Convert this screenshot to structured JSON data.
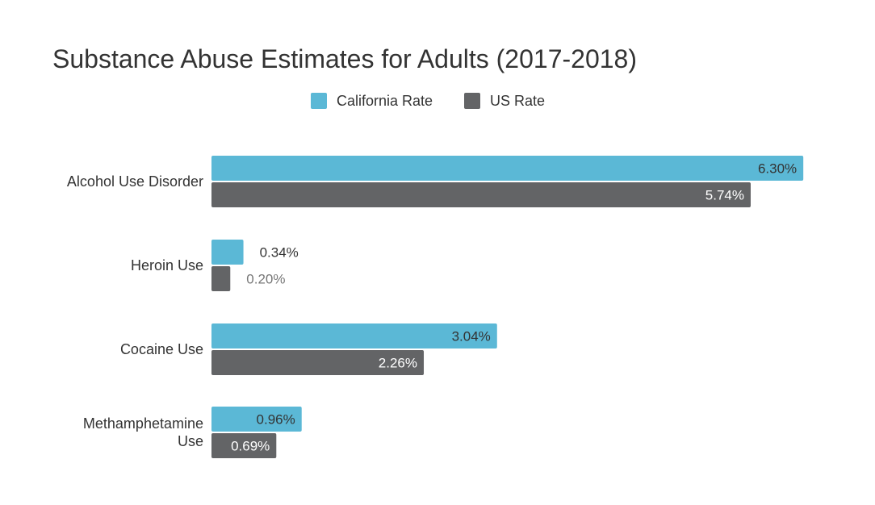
{
  "chart_data": {
    "type": "bar",
    "orientation": "horizontal",
    "title": "Substance Abuse Estimates for Adults (2017-2018)",
    "categories": [
      "Alcohol Use Disorder",
      "Heroin Use",
      "Cocaine Use",
      "Methamphetamine Use"
    ],
    "category_label_lines": [
      [
        "Alcohol Use Disorder"
      ],
      [
        "Heroin Use"
      ],
      [
        "Cocaine Use"
      ],
      [
        "Methamphetamine",
        "Use"
      ]
    ],
    "series": [
      {
        "name": "California Rate",
        "color": "#5bb8d6",
        "values": [
          6.3,
          0.34,
          3.04,
          0.96
        ],
        "labels": [
          "6.30%",
          "0.34%",
          "3.04%",
          "0.96%"
        ]
      },
      {
        "name": "US Rate",
        "color": "#636466",
        "values": [
          5.74,
          0.2,
          2.26,
          0.69
        ],
        "labels": [
          "5.74%",
          "0.20%",
          "2.26%",
          "0.69%"
        ]
      }
    ],
    "xlim": [
      0,
      6.35
    ],
    "grid": false,
    "legend": "top-center",
    "axis_visible": false
  }
}
